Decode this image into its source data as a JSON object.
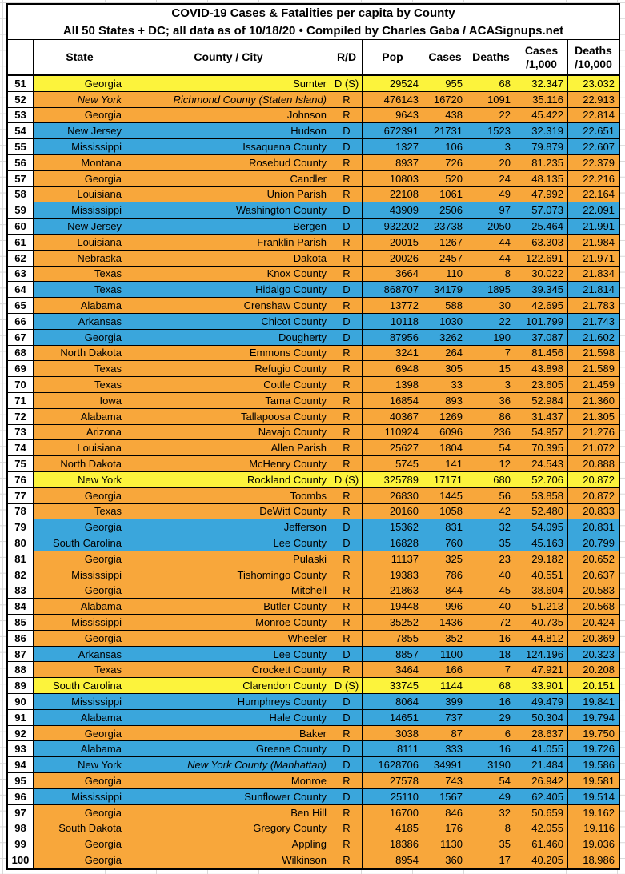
{
  "title": {
    "line1": "COVID-19 Cases & Fatalities per capita by County",
    "line2": "All 50 States + DC; all data as of 10/18/20 • Compiled by Charles Gaba / ACASignups.net"
  },
  "header": {
    "rank": "",
    "state": "State",
    "county": "County / City",
    "rd": "R/D",
    "pop": "Pop",
    "cases": "Cases",
    "deaths": "Deaths",
    "c1k_line1": "Cases",
    "c1k_line2": "/1,000",
    "d10k_line1": "Deaths",
    "d10k_line2": "/10,000"
  },
  "colors": {
    "republican_orange": "#F8A73B",
    "democrat_blue": "#3AA6DC",
    "swing_yellow": "#FCF33C",
    "header_deaths_highlight": "#FCF33C",
    "grid_black": "#000000"
  },
  "chart_data": {
    "type": "table",
    "title": "COVID-19 Cases & Fatalities per capita by County",
    "subtitle": "All 50 States + DC; all data as of 10/18/20 • Compiled by Charles Gaba / ACASignups.net",
    "columns": [
      "Rank",
      "State",
      "County / City",
      "R/D",
      "Pop",
      "Cases",
      "Deaths",
      "Cases /1,000",
      "Deaths /10,000"
    ],
    "color_legend": {
      "R": "orange",
      "D": "blue",
      "D (S)": "yellow"
    },
    "rows": [
      {
        "rank": "51",
        "state": "Georgia",
        "county": "Sumter",
        "rd": "D (S)",
        "pop": "29524",
        "cases": "955",
        "deaths": "68",
        "c1k": "32.347",
        "d10k": "23.032",
        "italic": ""
      },
      {
        "rank": "52",
        "state": "New York",
        "county": "Richmond County (Staten Island)",
        "rd": "R",
        "pop": "476143",
        "cases": "16720",
        "deaths": "1091",
        "c1k": "35.116",
        "d10k": "22.913",
        "italic": "both"
      },
      {
        "rank": "53",
        "state": "Georgia",
        "county": "Johnson",
        "rd": "R",
        "pop": "9643",
        "cases": "438",
        "deaths": "22",
        "c1k": "45.422",
        "d10k": "22.814",
        "italic": ""
      },
      {
        "rank": "54",
        "state": "New Jersey",
        "county": "Hudson",
        "rd": "D",
        "pop": "672391",
        "cases": "21731",
        "deaths": "1523",
        "c1k": "32.319",
        "d10k": "22.651",
        "italic": ""
      },
      {
        "rank": "55",
        "state": "Mississippi",
        "county": "Issaquena County",
        "rd": "D",
        "pop": "1327",
        "cases": "106",
        "deaths": "3",
        "c1k": "79.879",
        "d10k": "22.607",
        "italic": ""
      },
      {
        "rank": "56",
        "state": "Montana",
        "county": "Rosebud County",
        "rd": "R",
        "pop": "8937",
        "cases": "726",
        "deaths": "20",
        "c1k": "81.235",
        "d10k": "22.379",
        "italic": ""
      },
      {
        "rank": "57",
        "state": "Georgia",
        "county": "Candler",
        "rd": "R",
        "pop": "10803",
        "cases": "520",
        "deaths": "24",
        "c1k": "48.135",
        "d10k": "22.216",
        "italic": ""
      },
      {
        "rank": "58",
        "state": "Louisiana",
        "county": "Union Parish",
        "rd": "R",
        "pop": "22108",
        "cases": "1061",
        "deaths": "49",
        "c1k": "47.992",
        "d10k": "22.164",
        "italic": ""
      },
      {
        "rank": "59",
        "state": "Mississippi",
        "county": "Washington County",
        "rd": "D",
        "pop": "43909",
        "cases": "2506",
        "deaths": "97",
        "c1k": "57.073",
        "d10k": "22.091",
        "italic": ""
      },
      {
        "rank": "60",
        "state": "New Jersey",
        "county": "Bergen",
        "rd": "D",
        "pop": "932202",
        "cases": "23738",
        "deaths": "2050",
        "c1k": "25.464",
        "d10k": "21.991",
        "italic": ""
      },
      {
        "rank": "61",
        "state": "Louisiana",
        "county": "Franklin Parish",
        "rd": "R",
        "pop": "20015",
        "cases": "1267",
        "deaths": "44",
        "c1k": "63.303",
        "d10k": "21.984",
        "italic": ""
      },
      {
        "rank": "62",
        "state": "Nebraska",
        "county": "Dakota",
        "rd": "R",
        "pop": "20026",
        "cases": "2457",
        "deaths": "44",
        "c1k": "122.691",
        "d10k": "21.971",
        "italic": ""
      },
      {
        "rank": "63",
        "state": "Texas",
        "county": "Knox County",
        "rd": "R",
        "pop": "3664",
        "cases": "110",
        "deaths": "8",
        "c1k": "30.022",
        "d10k": "21.834",
        "italic": ""
      },
      {
        "rank": "64",
        "state": "Texas",
        "county": "Hidalgo County",
        "rd": "D",
        "pop": "868707",
        "cases": "34179",
        "deaths": "1895",
        "c1k": "39.345",
        "d10k": "21.814",
        "italic": ""
      },
      {
        "rank": "65",
        "state": "Alabama",
        "county": "Crenshaw County",
        "rd": "R",
        "pop": "13772",
        "cases": "588",
        "deaths": "30",
        "c1k": "42.695",
        "d10k": "21.783",
        "italic": ""
      },
      {
        "rank": "66",
        "state": "Arkansas",
        "county": "Chicot County",
        "rd": "D",
        "pop": "10118",
        "cases": "1030",
        "deaths": "22",
        "c1k": "101.799",
        "d10k": "21.743",
        "italic": ""
      },
      {
        "rank": "67",
        "state": "Georgia",
        "county": "Dougherty",
        "rd": "D",
        "pop": "87956",
        "cases": "3262",
        "deaths": "190",
        "c1k": "37.087",
        "d10k": "21.602",
        "italic": ""
      },
      {
        "rank": "68",
        "state": "North Dakota",
        "county": "Emmons County",
        "rd": "R",
        "pop": "3241",
        "cases": "264",
        "deaths": "7",
        "c1k": "81.456",
        "d10k": "21.598",
        "italic": ""
      },
      {
        "rank": "69",
        "state": "Texas",
        "county": "Refugio County",
        "rd": "R",
        "pop": "6948",
        "cases": "305",
        "deaths": "15",
        "c1k": "43.898",
        "d10k": "21.589",
        "italic": ""
      },
      {
        "rank": "70",
        "state": "Texas",
        "county": "Cottle County",
        "rd": "R",
        "pop": "1398",
        "cases": "33",
        "deaths": "3",
        "c1k": "23.605",
        "d10k": "21.459",
        "italic": ""
      },
      {
        "rank": "71",
        "state": "Iowa",
        "county": "Tama County",
        "rd": "R",
        "pop": "16854",
        "cases": "893",
        "deaths": "36",
        "c1k": "52.984",
        "d10k": "21.360",
        "italic": ""
      },
      {
        "rank": "72",
        "state": "Alabama",
        "county": "Tallapoosa County",
        "rd": "R",
        "pop": "40367",
        "cases": "1269",
        "deaths": "86",
        "c1k": "31.437",
        "d10k": "21.305",
        "italic": ""
      },
      {
        "rank": "73",
        "state": "Arizona",
        "county": "Navajo County",
        "rd": "R",
        "pop": "110924",
        "cases": "6096",
        "deaths": "236",
        "c1k": "54.957",
        "d10k": "21.276",
        "italic": ""
      },
      {
        "rank": "74",
        "state": "Louisiana",
        "county": "Allen Parish",
        "rd": "R",
        "pop": "25627",
        "cases": "1804",
        "deaths": "54",
        "c1k": "70.395",
        "d10k": "21.072",
        "italic": ""
      },
      {
        "rank": "75",
        "state": "North Dakota",
        "county": "McHenry County",
        "rd": "R",
        "pop": "5745",
        "cases": "141",
        "deaths": "12",
        "c1k": "24.543",
        "d10k": "20.888",
        "italic": ""
      },
      {
        "rank": "76",
        "state": "New York",
        "county": "Rockland County",
        "rd": "D (S)",
        "pop": "325789",
        "cases": "17171",
        "deaths": "680",
        "c1k": "52.706",
        "d10k": "20.872",
        "italic": ""
      },
      {
        "rank": "77",
        "state": "Georgia",
        "county": "Toombs",
        "rd": "R",
        "pop": "26830",
        "cases": "1445",
        "deaths": "56",
        "c1k": "53.858",
        "d10k": "20.872",
        "italic": ""
      },
      {
        "rank": "78",
        "state": "Texas",
        "county": "DeWitt County",
        "rd": "R",
        "pop": "20160",
        "cases": "1058",
        "deaths": "42",
        "c1k": "52.480",
        "d10k": "20.833",
        "italic": ""
      },
      {
        "rank": "79",
        "state": "Georgia",
        "county": "Jefferson",
        "rd": "D",
        "pop": "15362",
        "cases": "831",
        "deaths": "32",
        "c1k": "54.095",
        "d10k": "20.831",
        "italic": ""
      },
      {
        "rank": "80",
        "state": "South Carolina",
        "county": "Lee County",
        "rd": "D",
        "pop": "16828",
        "cases": "760",
        "deaths": "35",
        "c1k": "45.163",
        "d10k": "20.799",
        "italic": ""
      },
      {
        "rank": "81",
        "state": "Georgia",
        "county": "Pulaski",
        "rd": "R",
        "pop": "11137",
        "cases": "325",
        "deaths": "23",
        "c1k": "29.182",
        "d10k": "20.652",
        "italic": ""
      },
      {
        "rank": "82",
        "state": "Mississippi",
        "county": "Tishomingo County",
        "rd": "R",
        "pop": "19383",
        "cases": "786",
        "deaths": "40",
        "c1k": "40.551",
        "d10k": "20.637",
        "italic": ""
      },
      {
        "rank": "83",
        "state": "Georgia",
        "county": "Mitchell",
        "rd": "R",
        "pop": "21863",
        "cases": "844",
        "deaths": "45",
        "c1k": "38.604",
        "d10k": "20.583",
        "italic": ""
      },
      {
        "rank": "84",
        "state": "Alabama",
        "county": "Butler County",
        "rd": "R",
        "pop": "19448",
        "cases": "996",
        "deaths": "40",
        "c1k": "51.213",
        "d10k": "20.568",
        "italic": ""
      },
      {
        "rank": "85",
        "state": "Mississippi",
        "county": "Monroe County",
        "rd": "R",
        "pop": "35252",
        "cases": "1436",
        "deaths": "72",
        "c1k": "40.735",
        "d10k": "20.424",
        "italic": ""
      },
      {
        "rank": "86",
        "state": "Georgia",
        "county": "Wheeler",
        "rd": "R",
        "pop": "7855",
        "cases": "352",
        "deaths": "16",
        "c1k": "44.812",
        "d10k": "20.369",
        "italic": ""
      },
      {
        "rank": "87",
        "state": "Arkansas",
        "county": "Lee County",
        "rd": "D",
        "pop": "8857",
        "cases": "1100",
        "deaths": "18",
        "c1k": "124.196",
        "d10k": "20.323",
        "italic": ""
      },
      {
        "rank": "88",
        "state": "Texas",
        "county": "Crockett County",
        "rd": "R",
        "pop": "3464",
        "cases": "166",
        "deaths": "7",
        "c1k": "47.921",
        "d10k": "20.208",
        "italic": ""
      },
      {
        "rank": "89",
        "state": "South Carolina",
        "county": "Clarendon County",
        "rd": "D (S)",
        "pop": "33745",
        "cases": "1144",
        "deaths": "68",
        "c1k": "33.901",
        "d10k": "20.151",
        "italic": ""
      },
      {
        "rank": "90",
        "state": "Mississippi",
        "county": "Humphreys County",
        "rd": "D",
        "pop": "8064",
        "cases": "399",
        "deaths": "16",
        "c1k": "49.479",
        "d10k": "19.841",
        "italic": ""
      },
      {
        "rank": "91",
        "state": "Alabama",
        "county": "Hale County",
        "rd": "D",
        "pop": "14651",
        "cases": "737",
        "deaths": "29",
        "c1k": "50.304",
        "d10k": "19.794",
        "italic": ""
      },
      {
        "rank": "92",
        "state": "Georgia",
        "county": "Baker",
        "rd": "R",
        "pop": "3038",
        "cases": "87",
        "deaths": "6",
        "c1k": "28.637",
        "d10k": "19.750",
        "italic": ""
      },
      {
        "rank": "93",
        "state": "Alabama",
        "county": "Greene County",
        "rd": "D",
        "pop": "8111",
        "cases": "333",
        "deaths": "16",
        "c1k": "41.055",
        "d10k": "19.726",
        "italic": ""
      },
      {
        "rank": "94",
        "state": "New York",
        "county": "New York County (Manhattan)",
        "rd": "D",
        "pop": "1628706",
        "cases": "34991",
        "deaths": "3190",
        "c1k": "21.484",
        "d10k": "19.586",
        "italic": "county"
      },
      {
        "rank": "95",
        "state": "Georgia",
        "county": "Monroe",
        "rd": "R",
        "pop": "27578",
        "cases": "743",
        "deaths": "54",
        "c1k": "26.942",
        "d10k": "19.581",
        "italic": ""
      },
      {
        "rank": "96",
        "state": "Mississippi",
        "county": "Sunflower County",
        "rd": "D",
        "pop": "25110",
        "cases": "1567",
        "deaths": "49",
        "c1k": "62.405",
        "d10k": "19.514",
        "italic": ""
      },
      {
        "rank": "97",
        "state": "Georgia",
        "county": "Ben Hill",
        "rd": "R",
        "pop": "16700",
        "cases": "846",
        "deaths": "32",
        "c1k": "50.659",
        "d10k": "19.162",
        "italic": ""
      },
      {
        "rank": "98",
        "state": "South Dakota",
        "county": "Gregory County",
        "rd": "R",
        "pop": "4185",
        "cases": "176",
        "deaths": "8",
        "c1k": "42.055",
        "d10k": "19.116",
        "italic": ""
      },
      {
        "rank": "99",
        "state": "Georgia",
        "county": "Appling",
        "rd": "R",
        "pop": "18386",
        "cases": "1130",
        "deaths": "35",
        "c1k": "61.460",
        "d10k": "19.036",
        "italic": ""
      },
      {
        "rank": "100",
        "state": "Georgia",
        "county": "Wilkinson",
        "rd": "R",
        "pop": "8954",
        "cases": "360",
        "deaths": "17",
        "c1k": "40.205",
        "d10k": "18.986",
        "italic": ""
      }
    ]
  }
}
